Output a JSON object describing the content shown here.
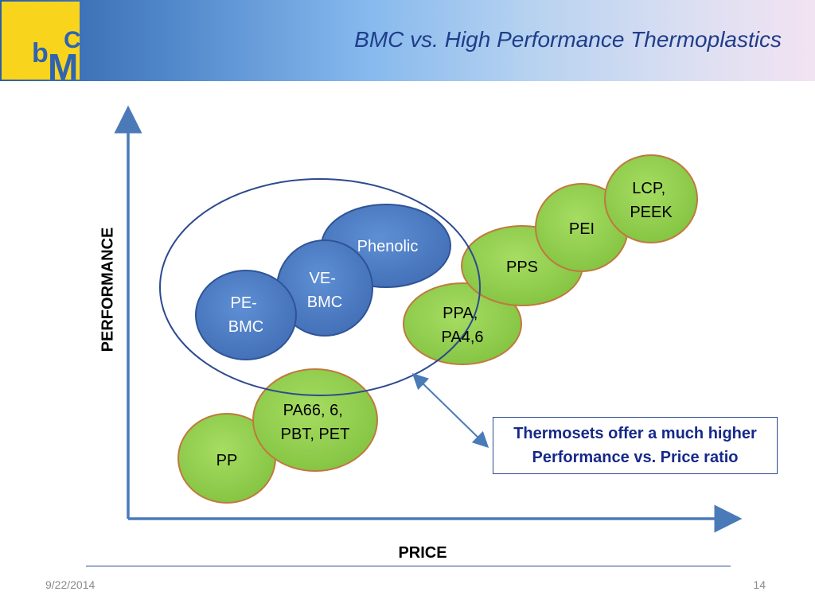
{
  "slide": {
    "title": "BMC vs. High Performance Thermoplastics",
    "date": "9/22/2014",
    "page_number": "14"
  },
  "logo": {
    "letters": [
      "b",
      "M",
      "C"
    ],
    "background_color": "#f8d51c",
    "letter_color": "#3063b0"
  },
  "axes": {
    "y_label": "PERFORMANCE",
    "x_label": "PRICE"
  },
  "callout": {
    "lines": [
      "Thermosets offer a much higher",
      "Performance vs. Price ratio"
    ]
  },
  "colors": {
    "thermoplastic_fill": "#92d050",
    "thermoplastic_border": "#c0793e",
    "thermoset_fill": "#4f7fc6",
    "thermoset_border": "#2f5496",
    "axis": "#4a7ab8",
    "text_dark": "#16298a"
  },
  "materials": {
    "thermosets": [
      {
        "id": "phenolic",
        "lines": [
          "Phenolic"
        ]
      },
      {
        "id": "ve-bmc",
        "lines": [
          "VE-",
          "BMC"
        ]
      },
      {
        "id": "pe-bmc",
        "lines": [
          "PE-",
          "BMC"
        ]
      }
    ],
    "thermoplastics": [
      {
        "id": "pp",
        "lines": [
          "PP"
        ]
      },
      {
        "id": "pa66-pbt-pet",
        "lines": [
          "PA66, 6,",
          "PBT, PET"
        ]
      },
      {
        "id": "ppa-pa46",
        "lines": [
          "PPA,",
          "PA4,6"
        ]
      },
      {
        "id": "pps",
        "lines": [
          "PPS"
        ]
      },
      {
        "id": "pei",
        "lines": [
          "PEI"
        ]
      },
      {
        "id": "lcp-peek",
        "lines": [
          "LCP,",
          "PEEK"
        ]
      }
    ]
  }
}
